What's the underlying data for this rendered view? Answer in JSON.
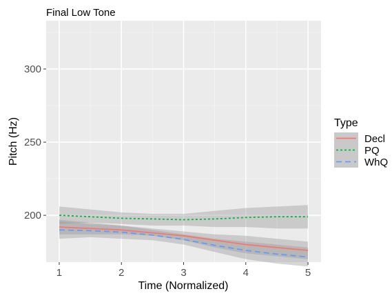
{
  "chart_data": {
    "type": "line",
    "title": "Final Low Tone",
    "xlabel": "Time (Normalized)",
    "ylabel": "Pitch (Hz)",
    "xlim": [
      0.79,
      5.21
    ],
    "ylim": [
      168,
      333
    ],
    "x_ticks": [
      1,
      2,
      3,
      4,
      5
    ],
    "y_ticks": [
      200,
      250,
      300
    ],
    "grid": true,
    "legend": {
      "title": "Type",
      "placement": "right"
    },
    "series": [
      {
        "name": "Decl",
        "color": "#F8766D",
        "dash": "solid",
        "x": [
          1,
          1.5,
          2,
          2.5,
          3,
          3.5,
          4,
          4.5,
          5
        ],
        "y": [
          192,
          191,
          190,
          188,
          186,
          183,
          180,
          178,
          176
        ],
        "ci_lower": [
          187,
          187,
          187,
          186,
          183,
          178,
          174,
          172,
          170
        ],
        "ci_upper": [
          197,
          195,
          193,
          191,
          189,
          187,
          186,
          184,
          182
        ]
      },
      {
        "name": "PQ",
        "color": "#00BA38",
        "dash": "dotted",
        "x": [
          1,
          1.5,
          2,
          2.5,
          3,
          3.5,
          4,
          4.5,
          5
        ],
        "y": [
          200,
          199,
          198,
          197.5,
          197,
          197.5,
          198.5,
          199,
          199
        ],
        "ci_lower": [
          194,
          195,
          194,
          193,
          193,
          192,
          192,
          191,
          191
        ],
        "ci_upper": [
          206,
          204,
          202,
          201,
          201,
          203,
          205,
          206,
          207
        ]
      },
      {
        "name": "WhQ",
        "color": "#619CFF",
        "dash": "dashed",
        "x": [
          1,
          1.5,
          2,
          2.5,
          3,
          3.5,
          4,
          4.5,
          5
        ],
        "y": [
          190,
          189.5,
          188.5,
          186.5,
          183.5,
          179.5,
          176,
          173.5,
          171.5
        ],
        "ci_lower": [
          184,
          185,
          184,
          183,
          180,
          175,
          170,
          167,
          165
        ],
        "ci_upper": [
          196,
          194,
          193,
          190,
          187,
          184,
          182,
          180,
          178
        ]
      }
    ]
  }
}
